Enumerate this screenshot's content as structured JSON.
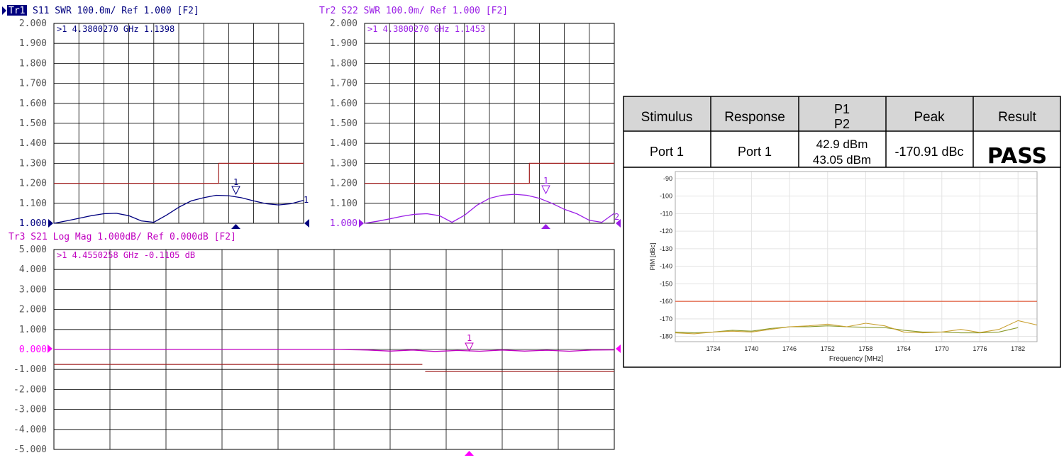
{
  "trace1": {
    "tag": "Tr1",
    "header": "S11  SWR 100.0m/  Ref 1.000  [F2]",
    "marker_readout": ">1   4.3800270  GHz   1.1398",
    "marker_label": "1",
    "end_label": "1",
    "color": "#00007f",
    "limit_color": "#a02020"
  },
  "trace2": {
    "header": "Tr2  S22  SWR 100.0m/  Ref 1.000  [F2]",
    "marker_readout": ">1   4.3800270  GHz   1.1453",
    "marker_label": "1",
    "end_label": "2",
    "color": "#9a1ee6",
    "limit_color": "#a02020"
  },
  "trace3": {
    "header": "Tr3  S21  Log Mag 1.000dB/  Ref 0.000dB  [F2]",
    "marker_readout": ">1   4.4550258  GHz  -0.1105  dB",
    "marker_label": "1",
    "color": "#c000c0",
    "limit_color": "#a02020"
  },
  "swr_ticks": [
    "2.000",
    "1.900",
    "1.800",
    "1.700",
    "1.600",
    "1.500",
    "1.400",
    "1.300",
    "1.200",
    "1.100",
    "1.000"
  ],
  "logmag_ticks": [
    "5.000",
    "4.000",
    "3.000",
    "2.000",
    "1.000",
    "0.000",
    "-1.000",
    "-2.000",
    "-3.000",
    "-4.000",
    "-5.000"
  ],
  "pim_table": {
    "headers": [
      "Stimulus",
      "Response",
      "P1",
      "P2",
      "Peak",
      "Result"
    ],
    "row": {
      "stimulus": "Port 1",
      "response": "Port 1",
      "p1": "42.9 dBm",
      "p2": "43.05 dBm",
      "peak": "-170.91 dBc",
      "result": "PASS"
    }
  },
  "chart_data": [
    {
      "type": "line",
      "trace": "Tr1 S11 SWR",
      "x": [
        0,
        5,
        10,
        15,
        20,
        25,
        30,
        35,
        40,
        45,
        50,
        55,
        60,
        65,
        70,
        75,
        80,
        85,
        90,
        95,
        100
      ],
      "y": [
        1.0,
        1.012,
        1.025,
        1.038,
        1.048,
        1.05,
        1.038,
        1.012,
        1.005,
        1.04,
        1.08,
        1.112,
        1.128,
        1.14,
        1.138,
        1.128,
        1.112,
        1.098,
        1.092,
        1.098,
        1.115
      ],
      "ylim": [
        1.0,
        2.0
      ],
      "marker": {
        "freq": "4.3800270 GHz",
        "value": 1.1398
      },
      "limit": [
        {
          "x": [
            0,
            66
          ],
          "y": 1.2
        },
        {
          "x": [
            66,
            100
          ],
          "y": 1.3
        }
      ]
    },
    {
      "type": "line",
      "trace": "Tr2 S22 SWR",
      "x": [
        0,
        5,
        10,
        15,
        20,
        25,
        30,
        35,
        40,
        45,
        50,
        55,
        60,
        65,
        70,
        75,
        80,
        85,
        90,
        95,
        100
      ],
      "y": [
        1.0,
        1.01,
        1.022,
        1.035,
        1.045,
        1.048,
        1.038,
        1.005,
        1.04,
        1.09,
        1.125,
        1.14,
        1.145,
        1.14,
        1.125,
        1.1,
        1.07,
        1.048,
        1.015,
        1.005,
        1.05
      ],
      "ylim": [
        1.0,
        2.0
      ],
      "marker": {
        "freq": "4.3800270 GHz",
        "value": 1.1453
      },
      "limit": [
        {
          "x": [
            0,
            66
          ],
          "y": 1.2
        },
        {
          "x": [
            66,
            100
          ],
          "y": 1.3
        }
      ]
    },
    {
      "type": "line",
      "trace": "Tr3 S21 Log Mag",
      "x": [
        0,
        10,
        20,
        30,
        40,
        50,
        56,
        60,
        64,
        68,
        72,
        76,
        80,
        84,
        88,
        92,
        96,
        100
      ],
      "y": [
        0.0,
        0.0,
        0.0,
        0.0,
        0.0,
        0.0,
        -0.03,
        -0.08,
        -0.03,
        -0.1,
        -0.05,
        -0.09,
        -0.03,
        -0.08,
        -0.04,
        -0.09,
        -0.03,
        -0.02
      ],
      "ylim": [
        -5.0,
        5.0
      ],
      "marker": {
        "freq": "4.4550258 GHz",
        "value": -0.1105
      },
      "limit": [
        {
          "x": [
            0,
            66
          ],
          "y": -0.75
        },
        {
          "x": [
            66,
            100
          ],
          "y": -1.1
        }
      ]
    },
    {
      "type": "line",
      "ylabel": "PIM [dBc]",
      "xlabel": "Frequency [MHz]",
      "xlim": [
        1728,
        1785
      ],
      "ylim": [
        -183,
        -86
      ],
      "yticks": [
        -90,
        -100,
        -110,
        -120,
        -130,
        -140,
        -150,
        -160,
        -170,
        -180
      ],
      "xticks": [
        1734,
        1740,
        1746,
        1752,
        1758,
        1764,
        1770,
        1776,
        1782
      ],
      "grid": true,
      "limit": -160,
      "series": [
        {
          "color": "#8a9a2a",
          "x": [
            1728,
            1731,
            1734,
            1737,
            1740,
            1743,
            1746,
            1749,
            1752,
            1755,
            1758,
            1761,
            1764,
            1767,
            1770,
            1773,
            1776,
            1779,
            1782
          ],
          "y": [
            -177.5,
            -178.0,
            -177.5,
            -176.5,
            -177.0,
            -175.5,
            -174.5,
            -174.5,
            -174.0,
            -174.5,
            -174.8,
            -175.0,
            -176.5,
            -177.5,
            -177.5,
            -178.0,
            -178.0,
            -177.5,
            -175.0
          ]
        },
        {
          "color": "#c9a030",
          "x": [
            1728,
            1731,
            1734,
            1737,
            1740,
            1743,
            1746,
            1749,
            1752,
            1755,
            1758,
            1761,
            1764,
            1767,
            1770,
            1773,
            1776,
            1779,
            1782,
            1785
          ],
          "y": [
            -178.0,
            -178.5,
            -177.5,
            -177.0,
            -177.5,
            -176.0,
            -174.5,
            -174.0,
            -173.0,
            -174.5,
            -172.5,
            -174.0,
            -177.5,
            -178.0,
            -177.5,
            -176.0,
            -177.8,
            -176.0,
            -171.0,
            -173.5
          ]
        }
      ]
    }
  ]
}
